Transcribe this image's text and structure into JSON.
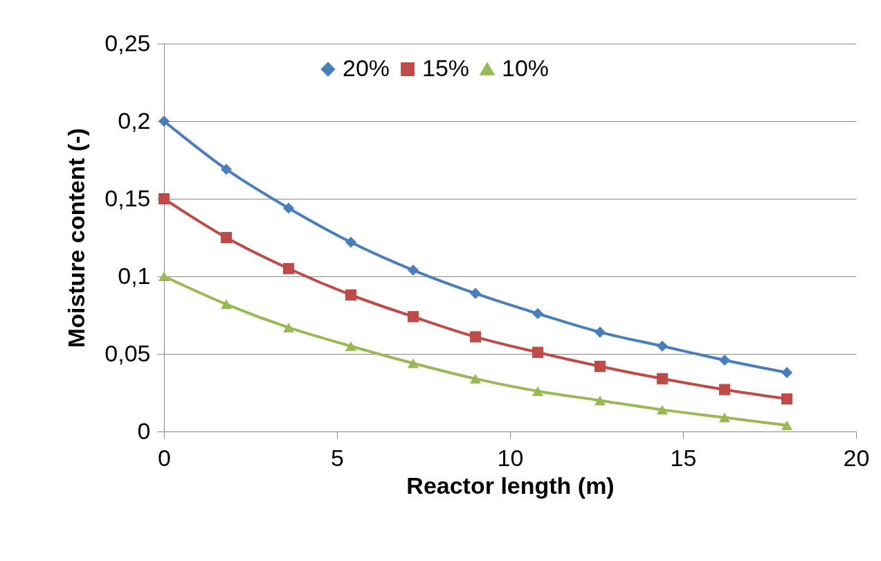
{
  "chart_data": {
    "type": "line",
    "xlabel": "Reactor length (m)",
    "ylabel": "Moisture content (-)",
    "x": [
      0,
      1.8,
      3.6,
      5.4,
      7.2,
      9,
      10.8,
      12.6,
      14.4,
      16.2,
      18
    ],
    "series": [
      {
        "name": "20%",
        "color": "#4a7ebb",
        "marker": "diamond",
        "values": [
          0.2,
          0.169,
          0.144,
          0.122,
          0.104,
          0.089,
          0.076,
          0.064,
          0.055,
          0.046,
          0.038
        ]
      },
      {
        "name": "15%",
        "color": "#be4b48",
        "marker": "square",
        "values": [
          0.15,
          0.125,
          0.105,
          0.088,
          0.074,
          0.061,
          0.051,
          0.042,
          0.034,
          0.027,
          0.021
        ]
      },
      {
        "name": "10%",
        "color": "#98b954",
        "marker": "triangle",
        "values": [
          0.1,
          0.082,
          0.067,
          0.055,
          0.044,
          0.034,
          0.026,
          0.02,
          0.014,
          0.009,
          0.004
        ]
      }
    ],
    "xlim": [
      0,
      20
    ],
    "xticks": [
      0,
      5,
      10,
      15,
      20
    ],
    "ylim": [
      0,
      0.25
    ],
    "yticks": [
      0,
      {
        "value": 0.05,
        "label": "0,05"
      },
      {
        "value": 0.1,
        "label": "0,1"
      },
      {
        "value": 0.15,
        "label": "0,15"
      },
      {
        "value": 0.2,
        "label": "0,2"
      },
      {
        "value": 0.25,
        "label": "0,25"
      }
    ],
    "grid": "y",
    "legend": "top",
    "line_style": "solid"
  }
}
